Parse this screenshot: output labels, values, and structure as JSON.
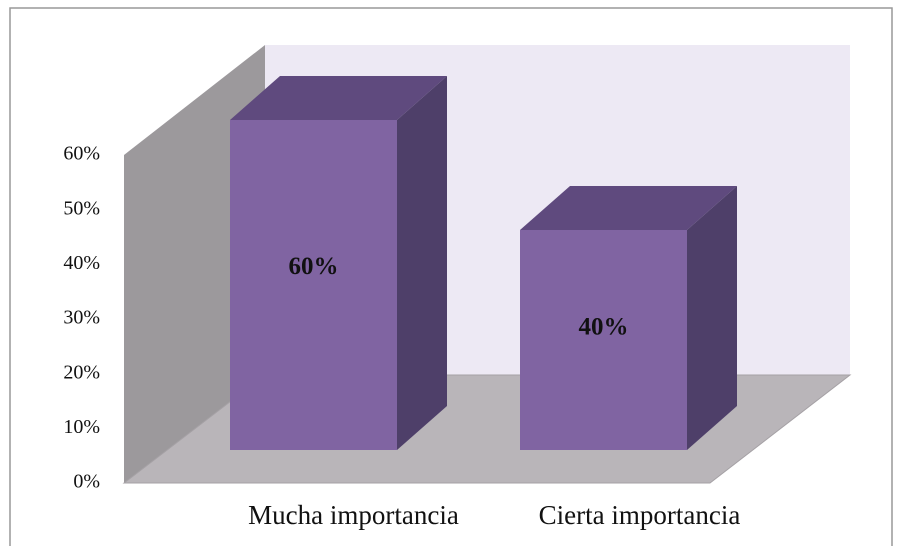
{
  "chart_data": {
    "type": "bar3d",
    "categories": [
      "Mucha importancia",
      "Cierta importancia"
    ],
    "values": [
      60,
      40
    ],
    "value_labels": [
      "60%",
      "40%"
    ],
    "color": "#8064a2",
    "ylim": [
      0,
      60
    ],
    "yticks": [
      {
        "value": 0,
        "label": "0%"
      },
      {
        "value": 10,
        "label": "10%"
      },
      {
        "value": 20,
        "label": "20%"
      },
      {
        "value": 30,
        "label": "30%"
      },
      {
        "value": 40,
        "label": "40%"
      },
      {
        "value": 50,
        "label": "50%"
      },
      {
        "value": 60,
        "label": "60%"
      }
    ]
  }
}
